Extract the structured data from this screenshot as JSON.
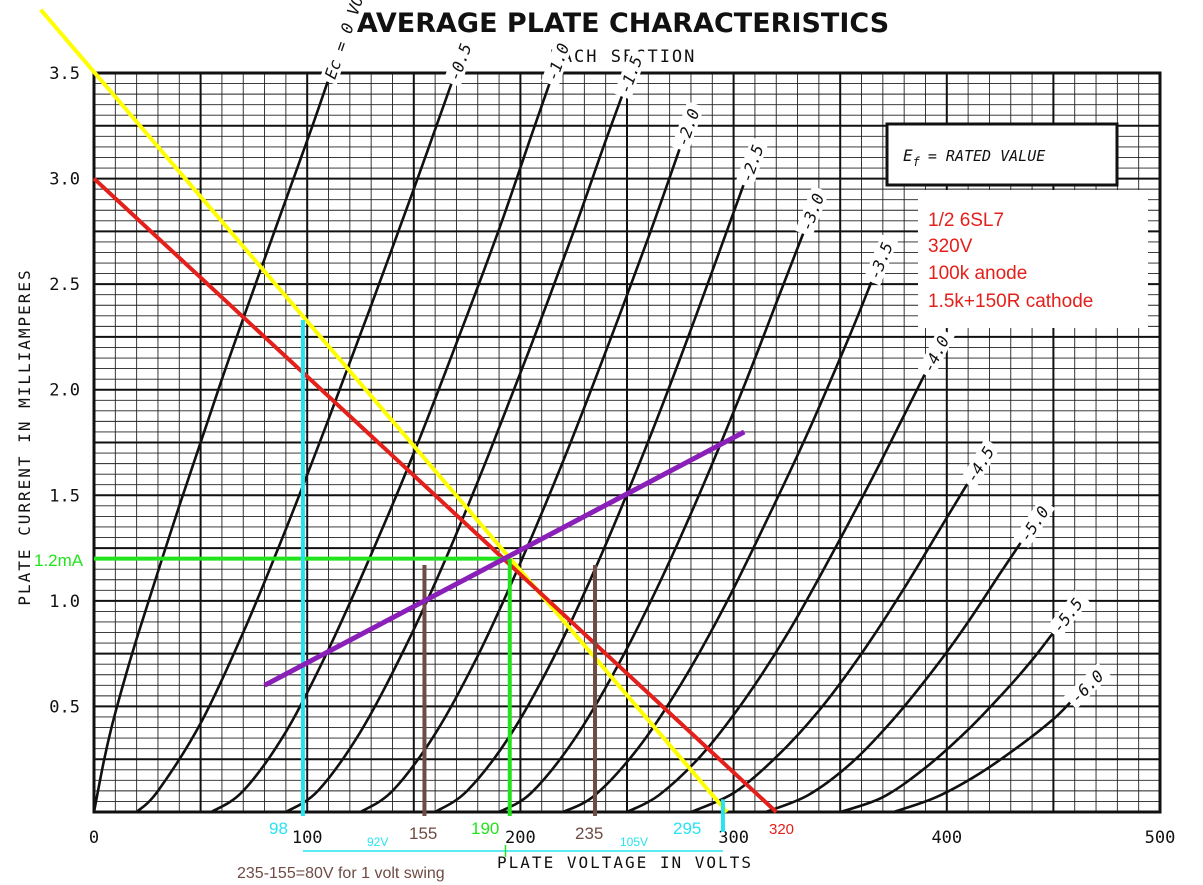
{
  "chart_data": {
    "type": "line",
    "title": "AVERAGE PLATE CHARACTERISTICS",
    "subtitle": "EACH SECTION",
    "xlabel": "PLATE VOLTAGE IN VOLTS",
    "ylabel": "PLATE CURRENT IN MILLIAMPERES",
    "xlim": [
      0,
      500
    ],
    "ylim": [
      0,
      3.5
    ],
    "x_ticks": [
      "0",
      "100",
      "200",
      "300",
      "400",
      "500"
    ],
    "y_ticks": [
      "0.5",
      "1.0",
      "1.5",
      "2.0",
      "2.5",
      "3.0",
      "3.5"
    ],
    "grid": true,
    "rated_box": {
      "lhs": "E",
      "sub": "f",
      "rhs": "= RATED VALUE"
    },
    "series": [
      {
        "name": "Ec = 0 VOLTS",
        "points": [
          [
            0,
            0
          ],
          [
            5,
            0.26
          ],
          [
            10,
            0.47
          ],
          [
            20,
            0.82
          ],
          [
            40,
            1.45
          ],
          [
            60,
            2.05
          ],
          [
            80,
            2.62
          ],
          [
            100,
            3.18
          ],
          [
            110,
            3.47
          ]
        ]
      },
      {
        "name": "-0.5",
        "points": [
          [
            20,
            0
          ],
          [
            30,
            0.1
          ],
          [
            50,
            0.42
          ],
          [
            70,
            0.85
          ],
          [
            90,
            1.34
          ],
          [
            110,
            1.86
          ],
          [
            130,
            2.4
          ],
          [
            150,
            2.95
          ],
          [
            168,
            3.46
          ]
        ]
      },
      {
        "name": "-1.0",
        "points": [
          [
            55,
            0
          ],
          [
            70,
            0.1
          ],
          [
            90,
            0.38
          ],
          [
            110,
            0.77
          ],
          [
            130,
            1.22
          ],
          [
            150,
            1.7
          ],
          [
            170,
            2.22
          ],
          [
            190,
            2.76
          ],
          [
            205,
            3.2
          ],
          [
            214,
            3.46
          ]
        ]
      },
      {
        "name": "-1.5",
        "points": [
          [
            90,
            0
          ],
          [
            105,
            0.1
          ],
          [
            125,
            0.38
          ],
          [
            145,
            0.76
          ],
          [
            165,
            1.2
          ],
          [
            185,
            1.69
          ],
          [
            205,
            2.21
          ],
          [
            225,
            2.75
          ],
          [
            240,
            3.18
          ],
          [
            248,
            3.4
          ]
        ]
      },
      {
        "name": "-2.0",
        "points": [
          [
            125,
            0
          ],
          [
            140,
            0.1
          ],
          [
            160,
            0.37
          ],
          [
            180,
            0.74
          ],
          [
            200,
            1.18
          ],
          [
            220,
            1.66
          ],
          [
            240,
            2.18
          ],
          [
            260,
            2.72
          ],
          [
            275,
            3.15
          ]
        ]
      },
      {
        "name": "-2.5",
        "points": [
          [
            160,
            0
          ],
          [
            175,
            0.1
          ],
          [
            195,
            0.36
          ],
          [
            215,
            0.72
          ],
          [
            235,
            1.15
          ],
          [
            255,
            1.63
          ],
          [
            275,
            2.15
          ],
          [
            295,
            2.7
          ],
          [
            305,
            2.98
          ]
        ]
      },
      {
        "name": "-3.0",
        "points": [
          [
            190,
            0
          ],
          [
            205,
            0.09
          ],
          [
            225,
            0.34
          ],
          [
            245,
            0.68
          ],
          [
            265,
            1.08
          ],
          [
            285,
            1.53
          ],
          [
            305,
            2.02
          ],
          [
            320,
            2.41
          ],
          [
            333,
            2.75
          ]
        ]
      },
      {
        "name": "-3.5",
        "points": [
          [
            220,
            0
          ],
          [
            235,
            0.08
          ],
          [
            255,
            0.3
          ],
          [
            275,
            0.6
          ],
          [
            295,
            0.96
          ],
          [
            315,
            1.37
          ],
          [
            335,
            1.8
          ],
          [
            355,
            2.27
          ],
          [
            365,
            2.52
          ]
        ]
      },
      {
        "name": "-4.0",
        "points": [
          [
            250,
            0
          ],
          [
            265,
            0.08
          ],
          [
            285,
            0.27
          ],
          [
            305,
            0.53
          ],
          [
            325,
            0.84
          ],
          [
            345,
            1.2
          ],
          [
            365,
            1.58
          ],
          [
            380,
            1.88
          ],
          [
            390,
            2.08
          ]
        ]
      },
      {
        "name": "-4.5",
        "points": [
          [
            280,
            0
          ],
          [
            300,
            0.09
          ],
          [
            320,
            0.26
          ],
          [
            340,
            0.48
          ],
          [
            360,
            0.75
          ],
          [
            380,
            1.06
          ],
          [
            398,
            1.36
          ],
          [
            410,
            1.56
          ]
        ]
      },
      {
        "name": "-5.0",
        "points": [
          [
            315,
            0
          ],
          [
            335,
            0.08
          ],
          [
            355,
            0.23
          ],
          [
            375,
            0.44
          ],
          [
            395,
            0.69
          ],
          [
            410,
            0.9
          ],
          [
            425,
            1.13
          ],
          [
            435,
            1.28
          ]
        ]
      },
      {
        "name": "-5.5",
        "points": [
          [
            350,
            0
          ],
          [
            370,
            0.07
          ],
          [
            390,
            0.21
          ],
          [
            410,
            0.39
          ],
          [
            428,
            0.58
          ],
          [
            440,
            0.72
          ],
          [
            450,
            0.85
          ]
        ]
      },
      {
        "name": "-6.0",
        "points": [
          [
            375,
            0
          ],
          [
            395,
            0.07
          ],
          [
            415,
            0.18
          ],
          [
            435,
            0.32
          ],
          [
            450,
            0.44
          ],
          [
            458,
            0.52
          ]
        ]
      }
    ],
    "annotations": {
      "note_lines": [
        "1/2 6SL7",
        "320V",
        "100k anode",
        "1.5k+150R cathode"
      ],
      "current_label": "1.2mA",
      "v98": "98",
      "v155": "155",
      "v190": "190",
      "v235": "235",
      "v295": "295",
      "v320": "320",
      "swing92": "92V",
      "swing105": "105V",
      "swing_note": "235-155=80V for 1 volt swing",
      "load_line_red": {
        "from": [
          0,
          3.0
        ],
        "to": [
          320,
          0
        ]
      },
      "load_line_yellow": {
        "from": [
          -25,
          3.8
        ],
        "to": [
          295,
          0
        ]
      },
      "operating_point": [
        195,
        1.2
      ],
      "purple_line": {
        "from": [
          80,
          0.6
        ],
        "to": [
          305,
          1.8
        ]
      },
      "colors": {
        "red": "#e3201b",
        "yellow": "#ffff00",
        "cyan": "#27e3f0",
        "green": "#22e41c",
        "brown": "#6e4b43",
        "purple": "#8a20b8"
      }
    }
  }
}
